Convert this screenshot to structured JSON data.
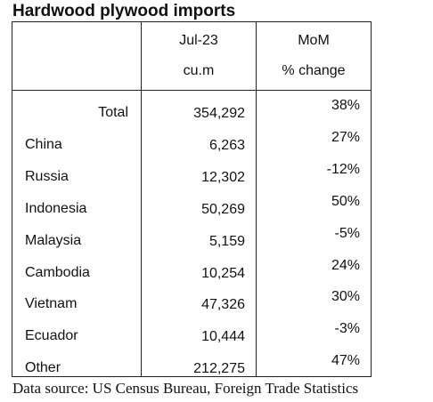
{
  "title": "Hardwood plywood imports",
  "source": "Data source: US Census Bureau, Foreign Trade Statistics",
  "chart_data": {
    "type": "table",
    "columns": [
      {
        "line1": "Jul-23",
        "line2": "cu.m"
      },
      {
        "line1": "MoM",
        "line2": "% change"
      }
    ],
    "rows": [
      {
        "label": "Total",
        "volume": "354,292",
        "change": "38%"
      },
      {
        "label": "China",
        "volume": "6,263",
        "change": "27%"
      },
      {
        "label": "Russia",
        "volume": "12,302",
        "change": "-12%"
      },
      {
        "label": "Indonesia",
        "volume": "50,269",
        "change": "50%"
      },
      {
        "label": "Malaysia",
        "volume": "5,159",
        "change": "-5%"
      },
      {
        "label": "Cambodia",
        "volume": "10,254",
        "change": "24%"
      },
      {
        "label": "Vietnam",
        "volume": "47,326",
        "change": "30%"
      },
      {
        "label": "Ecuador",
        "volume": "10,444",
        "change": "-3%"
      },
      {
        "label": "Other",
        "volume": "212,275",
        "change": "47%"
      }
    ]
  }
}
